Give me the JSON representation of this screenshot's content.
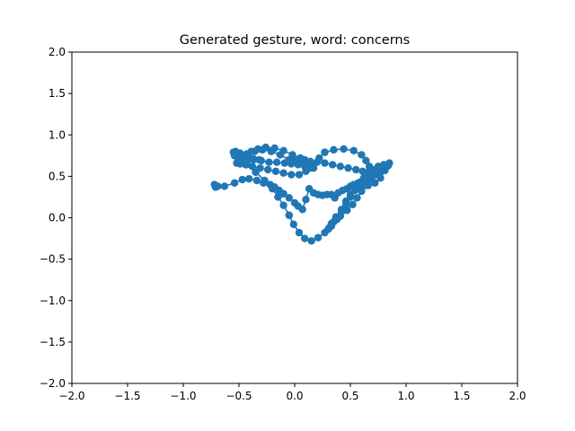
{
  "chart_data": {
    "type": "line",
    "title": "Generated gesture, word: concerns",
    "xlabel": "",
    "ylabel": "",
    "xlim": [
      -2.0,
      2.0
    ],
    "ylim": [
      -2.0,
      2.0
    ],
    "xticks": [
      -2.0,
      -1.5,
      -1.0,
      -0.5,
      0.0,
      0.5,
      1.0,
      1.5,
      2.0
    ],
    "yticks": [
      -2.0,
      -1.5,
      -1.0,
      -0.5,
      0.0,
      0.5,
      1.0,
      1.5,
      2.0
    ],
    "xtick_labels": [
      "−2.0",
      "−1.5",
      "−1.0",
      "−0.5",
      "0.0",
      "0.5",
      "1.0",
      "1.5",
      "2.0"
    ],
    "ytick_labels": [
      "−2.0",
      "−1.5",
      "−1.0",
      "−0.5",
      "0.0",
      "0.5",
      "1.0",
      "1.5",
      "2.0"
    ],
    "grid": false,
    "legend": false,
    "color": "#1f77b4",
    "series": [
      {
        "x": [
          -0.72,
          -0.71,
          -0.69,
          -0.63,
          -0.54,
          -0.47,
          -0.41,
          -0.34,
          -0.28,
          -0.22,
          -0.18,
          -0.14,
          -0.1,
          -0.05,
          0.0,
          0.03,
          0.07,
          0.1,
          0.13,
          0.17,
          0.21,
          0.25,
          0.29,
          0.33,
          0.36,
          0.39,
          0.43,
          0.47,
          0.5,
          0.53,
          0.57,
          0.6,
          0.63,
          0.67
        ],
        "y": [
          0.4,
          0.37,
          0.38,
          0.38,
          0.42,
          0.46,
          0.47,
          0.45,
          0.42,
          0.4,
          0.37,
          0.33,
          0.29,
          0.24,
          0.18,
          0.14,
          0.1,
          0.22,
          0.35,
          0.3,
          0.28,
          0.27,
          0.28,
          0.28,
          0.24,
          0.3,
          0.33,
          0.35,
          0.38,
          0.4,
          0.42,
          0.44,
          0.46,
          0.48
        ]
      },
      {
        "x": [
          0.67,
          0.72,
          0.78,
          0.83,
          0.85,
          0.84,
          0.81,
          0.77,
          0.72,
          0.66,
          0.6,
          0.54,
          0.5,
          0.46,
          0.42,
          0.37,
          0.33,
          0.3,
          0.31,
          0.35,
          0.41,
          0.47,
          0.52,
          0.56,
          0.6,
          0.63,
          0.66,
          0.7
        ],
        "y": [
          0.48,
          0.52,
          0.57,
          0.62,
          0.66,
          0.63,
          0.57,
          0.48,
          0.42,
          0.39,
          0.36,
          0.33,
          0.28,
          0.2,
          0.1,
          0.01,
          -0.07,
          -0.14,
          -0.12,
          -0.05,
          0.02,
          0.09,
          0.16,
          0.24,
          0.32,
          0.39,
          0.45,
          0.5
        ]
      },
      {
        "x": [
          0.7,
          0.75,
          0.8,
          0.82,
          0.8,
          0.75,
          0.7,
          0.66,
          0.62,
          0.58,
          0.54,
          0.5,
          0.46,
          0.42,
          0.38,
          0.33,
          0.27,
          0.21,
          0.15,
          0.09,
          0.04,
          -0.01,
          -0.05
        ],
        "y": [
          0.5,
          0.55,
          0.58,
          0.63,
          0.64,
          0.62,
          0.58,
          0.54,
          0.48,
          0.42,
          0.35,
          0.25,
          0.16,
          0.07,
          -0.02,
          -0.1,
          -0.18,
          -0.24,
          -0.28,
          -0.25,
          -0.18,
          -0.08,
          0.03
        ]
      },
      {
        "x": [
          -0.05,
          -0.1,
          -0.15,
          -0.2,
          -0.27,
          -0.35,
          -0.43,
          -0.5,
          -0.54,
          -0.55,
          -0.53,
          -0.49,
          -0.43,
          -0.37,
          -0.3,
          -0.23,
          -0.16,
          -0.09,
          -0.03,
          0.03,
          0.09,
          0.14,
          0.17,
          0.15,
          0.1,
          0.05,
          0.0,
          -0.05
        ],
        "y": [
          0.03,
          0.15,
          0.25,
          0.35,
          0.45,
          0.55,
          0.64,
          0.7,
          0.75,
          0.79,
          0.8,
          0.78,
          0.74,
          0.71,
          0.69,
          0.67,
          0.67,
          0.66,
          0.65,
          0.64,
          0.62,
          0.6,
          0.6,
          0.62,
          0.65,
          0.67,
          0.69,
          0.7
        ]
      },
      {
        "x": [
          -0.05,
          -0.13,
          -0.21,
          -0.29,
          -0.36,
          -0.42,
          -0.47,
          -0.51,
          -0.52,
          -0.49,
          -0.44,
          -0.38,
          -0.31,
          -0.24,
          -0.17,
          -0.1,
          -0.03,
          0.04,
          0.1,
          0.16,
          0.22,
          0.27
        ],
        "y": [
          0.7,
          0.76,
          0.8,
          0.82,
          0.8,
          0.76,
          0.72,
          0.68,
          0.66,
          0.65,
          0.64,
          0.62,
          0.6,
          0.58,
          0.56,
          0.54,
          0.52,
          0.52,
          0.56,
          0.64,
          0.72,
          0.79
        ]
      },
      {
        "x": [
          0.27,
          0.35,
          0.44,
          0.53,
          0.6,
          0.64,
          0.67,
          0.68,
          0.66,
          0.61,
          0.55,
          0.48,
          0.41,
          0.34,
          0.27,
          0.2,
          0.14,
          0.09,
          0.05
        ],
        "y": [
          0.79,
          0.82,
          0.83,
          0.81,
          0.76,
          0.69,
          0.62,
          0.57,
          0.55,
          0.56,
          0.58,
          0.6,
          0.62,
          0.64,
          0.66,
          0.67,
          0.68,
          0.7,
          0.72
        ]
      },
      {
        "x": [
          0.05,
          -0.02,
          -0.1,
          -0.18,
          -0.26,
          -0.33,
          -0.39,
          -0.43,
          -0.45,
          -0.44,
          -0.41,
          -0.37,
          -0.32
        ],
        "y": [
          0.72,
          0.76,
          0.81,
          0.84,
          0.85,
          0.83,
          0.8,
          0.77,
          0.74,
          0.72,
          0.71,
          0.7,
          0.7
        ]
      }
    ]
  }
}
